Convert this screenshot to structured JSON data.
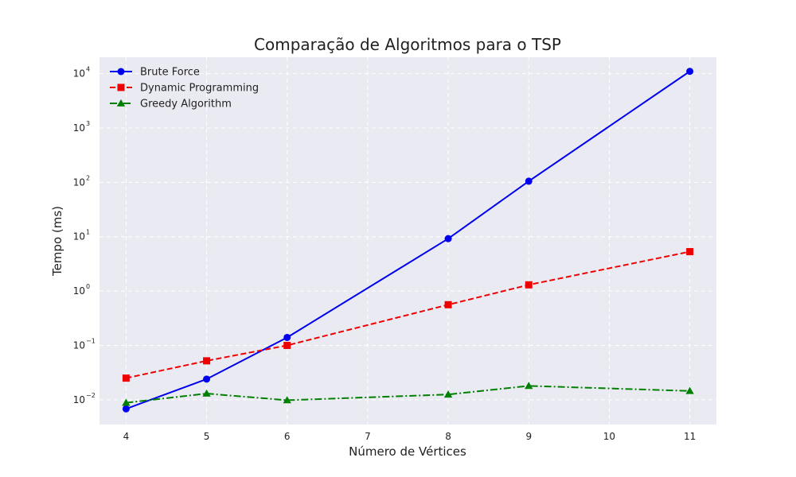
{
  "chart_data": {
    "type": "line",
    "title": "Comparação de Algoritmos para o TSP",
    "xlabel": "Número de Vértices",
    "ylabel": "Tempo (ms)",
    "yscale": "log",
    "xlim": [
      3.67,
      11.33
    ],
    "ylim": [
      0.0035,
      20000
    ],
    "x_ticks": [
      4,
      5,
      6,
      7,
      8,
      9,
      10,
      11
    ],
    "y_ticks": [
      {
        "value": 0.01,
        "base": "10",
        "exp": "−2"
      },
      {
        "value": 0.1,
        "base": "10",
        "exp": "−1"
      },
      {
        "value": 1,
        "base": "10",
        "exp": "0"
      },
      {
        "value": 10,
        "base": "10",
        "exp": "1"
      },
      {
        "value": 100,
        "base": "10",
        "exp": "2"
      },
      {
        "value": 1000,
        "base": "10",
        "exp": "3"
      },
      {
        "value": 10000,
        "base": "10",
        "exp": "4"
      }
    ],
    "grid": true,
    "legend_position": "top-left",
    "series": [
      {
        "name": "Brute Force",
        "color": "#0000ee",
        "linestyle": "solid",
        "marker": "circle",
        "x": [
          4,
          5,
          6,
          8,
          9,
          11
        ],
        "values": [
          0.0068,
          0.024,
          0.14,
          9.2,
          105,
          11000
        ]
      },
      {
        "name": "Dynamic Programming",
        "color": "#ee0000",
        "linestyle": "dashed",
        "marker": "square",
        "x": [
          4,
          5,
          6,
          8,
          9,
          11
        ],
        "values": [
          0.025,
          0.052,
          0.1,
          0.56,
          1.3,
          5.3
        ]
      },
      {
        "name": "Greedy Algorithm",
        "color": "#008000",
        "linestyle": "dashdot",
        "marker": "triangle",
        "x": [
          4,
          5,
          6,
          8,
          9,
          11
        ],
        "values": [
          0.0088,
          0.013,
          0.0098,
          0.0125,
          0.018,
          0.0145
        ]
      }
    ]
  }
}
